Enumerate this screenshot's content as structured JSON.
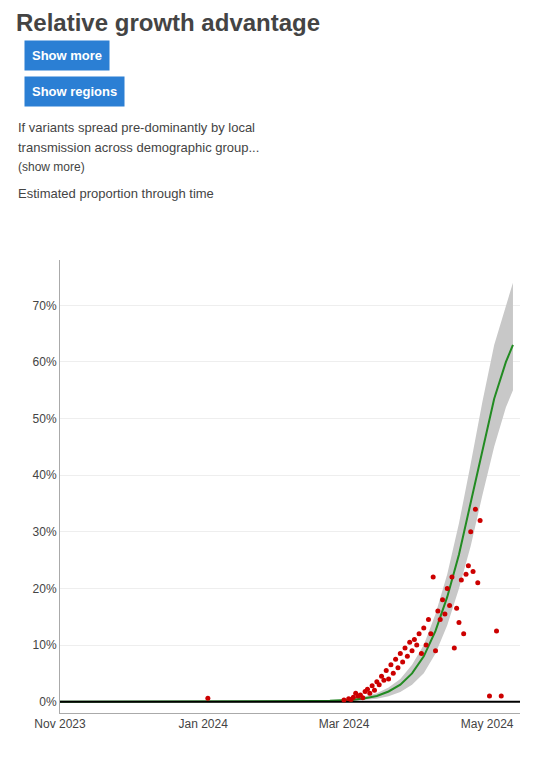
{
  "chart_data": {
    "type": "line",
    "title": "Relative growth advantage",
    "subtitle": "Estimated proportion through time",
    "annotations": [
      {
        "text": "Show more",
        "color": "#2b7fd4"
      },
      {
        "text": "Show regions",
        "color": "#2b7fd4"
      },
      {
        "text": "If variants spread pre-dominantly by local"
      },
      {
        "text": "transmission across demographic group..."
      },
      {
        "text": "(show more)"
      }
    ],
    "series": [
      {
        "type": "area",
        "color": "#c8c8c8",
        "x": [
          0,
          10,
          20,
          30,
          40,
          50,
          60,
          70,
          80,
          90,
          100,
          110,
          115,
          120,
          125,
          130,
          135,
          140,
          145,
          150,
          155,
          160,
          165,
          170,
          175,
          180,
          185,
          190,
          193
        ],
        "lower": [
          0.0,
          0.0,
          0.0,
          0.0,
          0.0,
          0.0,
          0.0,
          0.0,
          0.01,
          0.01,
          0.02,
          0.04,
          0.06,
          0.1,
          0.16,
          0.28,
          0.5,
          0.95,
          1.7,
          3.0,
          5.0,
          8.5,
          13.5,
          20.0,
          27.5,
          36.5,
          45.0,
          52.0,
          55.0
        ],
        "upper": [
          0.0,
          0.0,
          0.0,
          0.0,
          0.0,
          0.0,
          0.05,
          0.06,
          0.07,
          0.09,
          0.13,
          0.2,
          0.28,
          0.4,
          0.6,
          0.95,
          1.5,
          2.5,
          4.0,
          6.5,
          10.0,
          15.5,
          22.5,
          31.5,
          42.0,
          53.0,
          63.0,
          70.0,
          74.0
        ]
      },
      {
        "type": "line",
        "color": "#228B22",
        "x": [
          0,
          10,
          20,
          30,
          40,
          50,
          60,
          70,
          80,
          90,
          100,
          110,
          115,
          120,
          125,
          130,
          135,
          140,
          145,
          150,
          155,
          160,
          165,
          170,
          175,
          180,
          185,
          190,
          193
        ],
        "values": [
          0.0,
          0.0,
          0.0,
          0.0,
          0.0,
          0.0,
          0.02,
          0.02,
          0.03,
          0.04,
          0.06,
          0.1,
          0.15,
          0.22,
          0.35,
          0.6,
          1.0,
          1.8,
          3.0,
          5.0,
          8.0,
          12.5,
          18.5,
          26.0,
          35.0,
          44.5,
          53.5,
          60.0,
          63.0
        ]
      },
      {
        "type": "line",
        "color": "#000000",
        "x": [
          0,
          196
        ],
        "values": [
          0,
          0
        ]
      },
      {
        "type": "scatter",
        "color": "#cc0000",
        "x": [
          63,
          121,
          123,
          124,
          125,
          126,
          127,
          128,
          129,
          130,
          131,
          132,
          133,
          134,
          135,
          136,
          137,
          138,
          139,
          140,
          141,
          142,
          143,
          144,
          145,
          146,
          147,
          148,
          149,
          150,
          151,
          152,
          153,
          154,
          155,
          156,
          157,
          158,
          159,
          160,
          161,
          162,
          163,
          164,
          165,
          166,
          167,
          168,
          169,
          170,
          171,
          172,
          173,
          174,
          175,
          176,
          177,
          178,
          179,
          183,
          186,
          188
        ],
        "values": [
          0.6,
          0.3,
          0.5,
          0.4,
          0.8,
          1.5,
          1.0,
          1.2,
          0.7,
          1.8,
          2.2,
          1.5,
          2.8,
          2.0,
          3.5,
          3.0,
          4.5,
          3.8,
          5.5,
          4.0,
          6.5,
          5.0,
          7.5,
          6.0,
          8.5,
          7.0,
          9.5,
          8.0,
          10.5,
          9.0,
          11.0,
          10.0,
          12.0,
          8.5,
          13.0,
          10.0,
          14.5,
          12.0,
          22.0,
          9.0,
          16.0,
          14.5,
          18.0,
          15.5,
          20.0,
          17.0,
          22.0,
          9.5,
          16.5,
          14.0,
          21.5,
          12.0,
          22.5,
          24.0,
          30.0,
          23.0,
          34.0,
          21.0,
          32.0,
          1.0,
          12.5,
          1.0
        ]
      }
    ],
    "xlim": [
      0,
      196
    ],
    "xticks": [
      {
        "value": 0,
        "label": "Nov 2023"
      },
      {
        "value": 61,
        "label": "Jan 2024"
      },
      {
        "value": 121,
        "label": "Mar 2024"
      },
      {
        "value": 182,
        "label": "May 2024"
      }
    ],
    "ylim": [
      -2,
      78
    ],
    "yticks": [
      {
        "value": 0,
        "label": "0%"
      },
      {
        "value": 10,
        "label": "10%"
      },
      {
        "value": 20,
        "label": "20%"
      },
      {
        "value": 30,
        "label": "30%"
      },
      {
        "value": 40,
        "label": "40%"
      },
      {
        "value": 50,
        "label": "50%"
      },
      {
        "value": 60,
        "label": "60%"
      },
      {
        "value": 70,
        "label": "70%"
      }
    ],
    "grid": true
  }
}
